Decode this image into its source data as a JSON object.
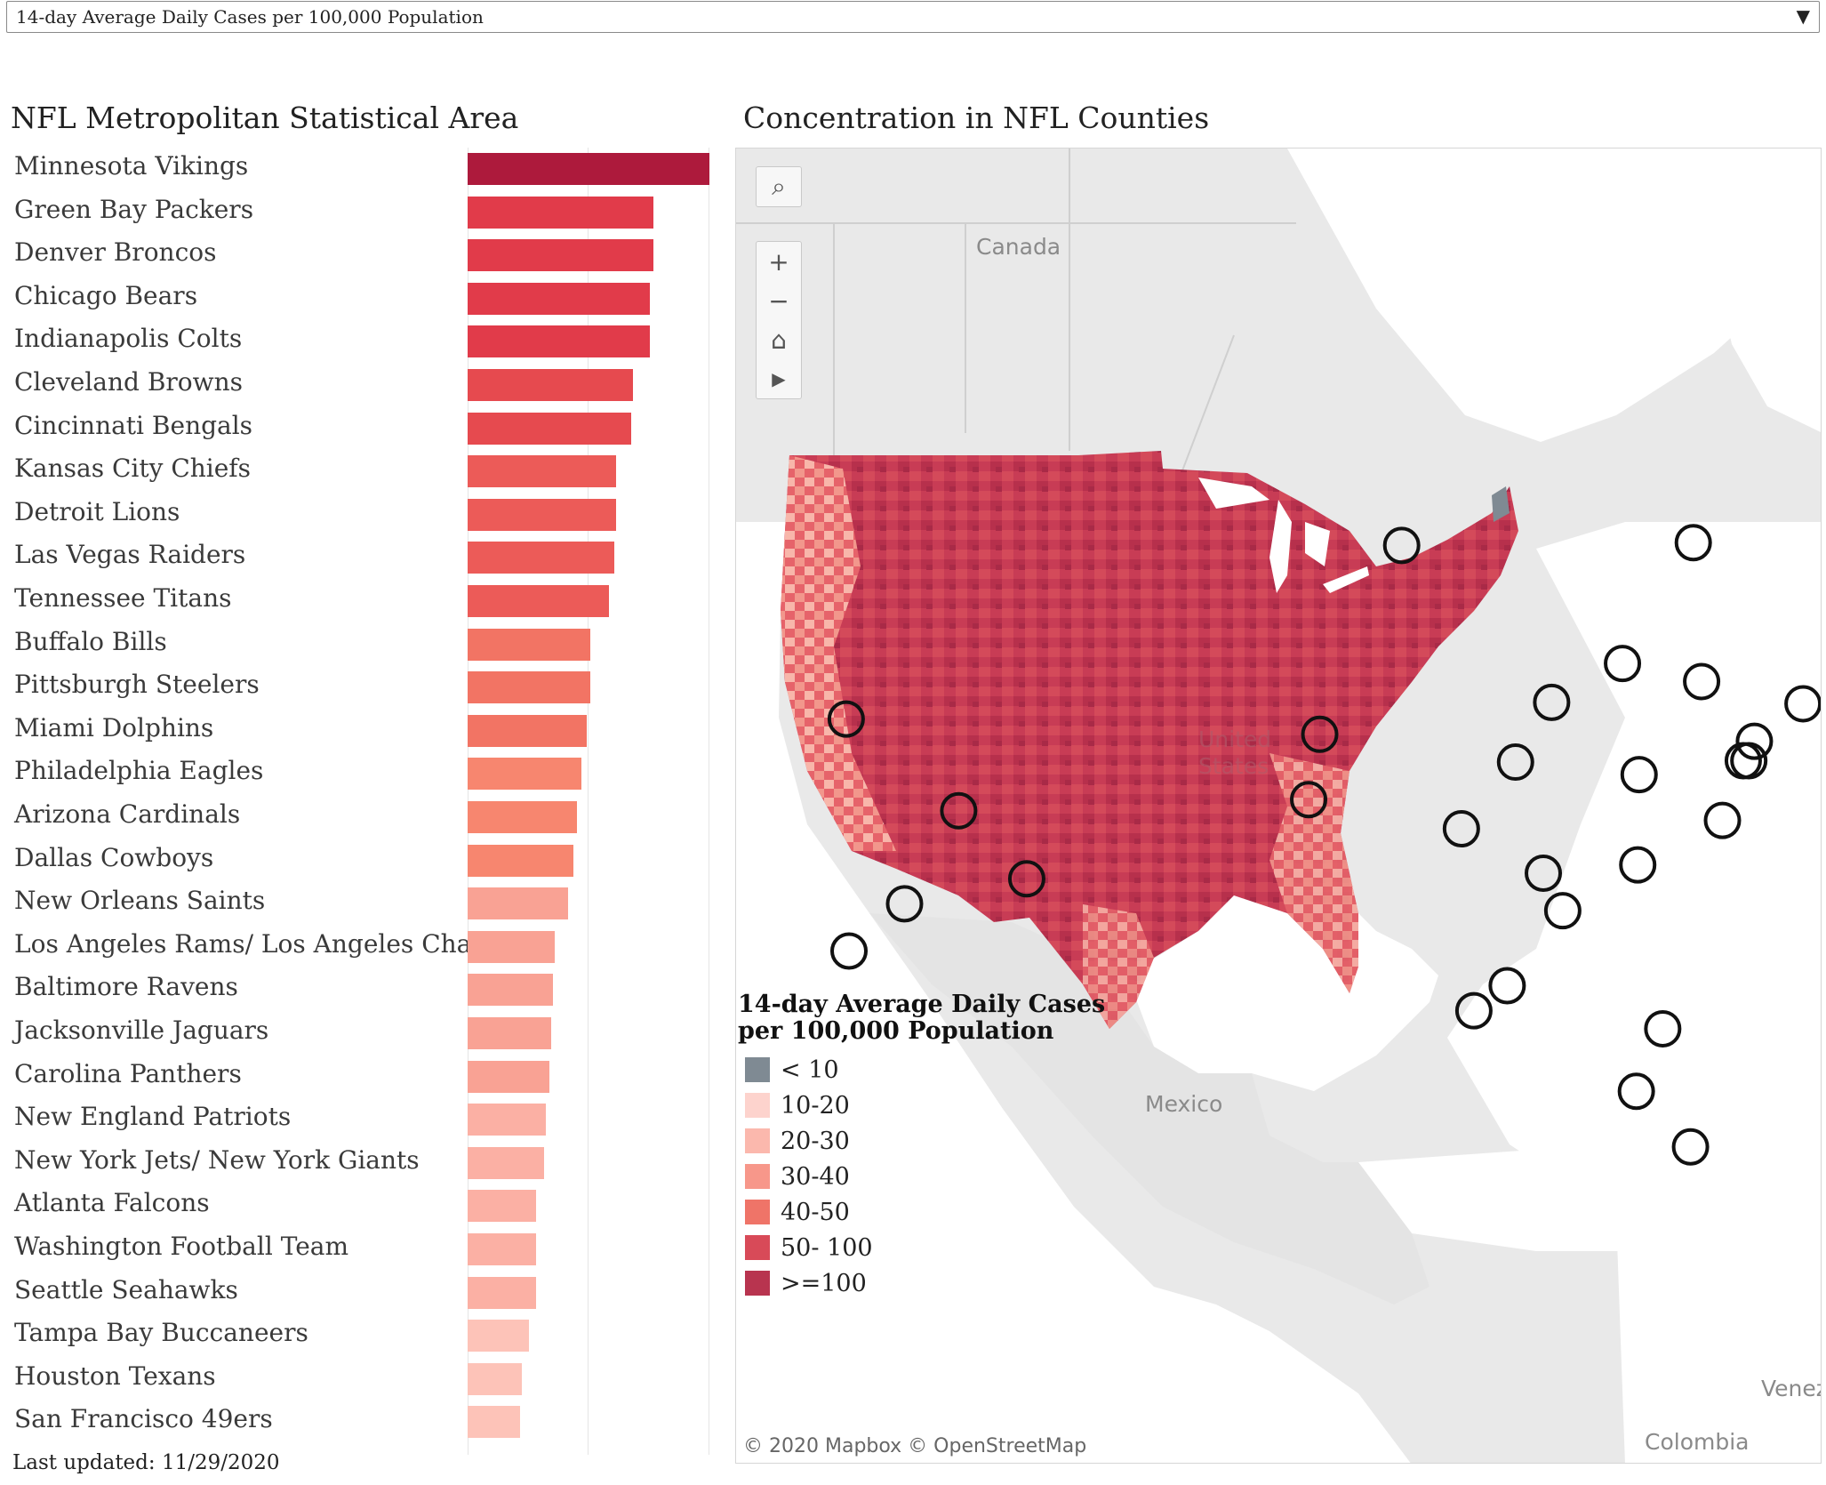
{
  "filter": {
    "selected": "14-day Average Daily Cases per 100,000 Population"
  },
  "left_title": "NFL Metropolitan Statistical Area",
  "right_title": "Concentration in NFL Counties",
  "last_updated": "Last updated: 11/29/2020",
  "chart_data": {
    "type": "bar",
    "orientation": "horizontal",
    "title": "NFL Metropolitan Statistical Area",
    "xlim": [
      0,
      130
    ],
    "categories": [
      "Minnesota Vikings",
      "Green Bay Packers",
      "Denver Broncos",
      "Chicago Bears",
      "Indianapolis Colts",
      "Cleveland Browns",
      "Cincinnati Bengals",
      "Kansas City Chiefs",
      "Detroit Lions",
      "Las Vegas Raiders",
      "Tennessee Titans",
      "Buffalo Bills",
      "Pittsburgh Steelers",
      "Miami Dolphins",
      "Philadelphia Eagles",
      "Arizona Cardinals",
      "Dallas Cowboys",
      "New Orleans Saints",
      "Los Angeles Rams/ Los Angeles Chargers",
      "Baltimore Ravens",
      "Jacksonville Jaguars",
      "Carolina Panthers",
      "New England Patriots",
      "New York Jets/ New York Giants",
      "Atlanta Falcons",
      "Washington Football Team",
      "Seattle Seahawks",
      "Tampa Bay Buccaneers",
      "Houston Texans",
      "San Francisco 49ers"
    ],
    "values": [
      130,
      100,
      100,
      98,
      98,
      89,
      88,
      80,
      80,
      79,
      76,
      66,
      66,
      64,
      61,
      59,
      57,
      54,
      47,
      46,
      45,
      44,
      42,
      41,
      37,
      37,
      37,
      33,
      29,
      28
    ]
  },
  "map": {
    "labels": {
      "canada": "Canada",
      "mexico": "Mexico",
      "venezuela": "Venez",
      "colombia": "Colombia",
      "united_states": "United States"
    },
    "copyright": "© 2020 Mapbox © OpenStreetMap",
    "tools": {
      "search": "search-icon",
      "zoom_in": "+",
      "zoom_out": "−",
      "home": "home-icon",
      "play": "play-icon"
    }
  },
  "legend": {
    "title": "14-day Average Daily Cases per 100,000 Population",
    "items": [
      {
        "label": "< 10",
        "color": "#7f8a93"
      },
      {
        "label": "10-20",
        "color": "#fdd3cd"
      },
      {
        "label": "20-30",
        "color": "#fbb8ad"
      },
      {
        "label": "30-40",
        "color": "#f7978a"
      },
      {
        "label": "40-50",
        "color": "#ef7468"
      },
      {
        "label": "50- 100",
        "color": "#d84a58"
      },
      {
        "label": ">=100",
        "color": "#b8344f"
      }
    ]
  }
}
